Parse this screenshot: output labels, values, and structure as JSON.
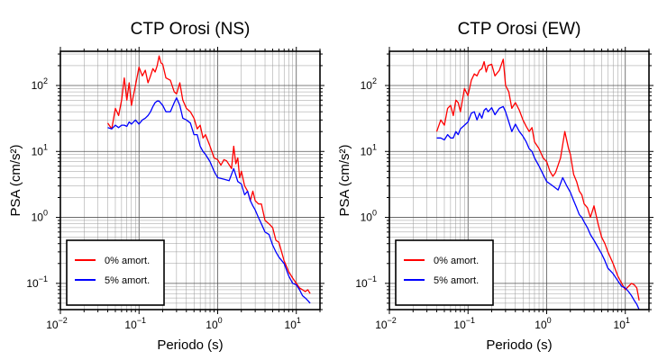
{
  "chart_data": [
    {
      "type": "line",
      "title": "CTP Orosi (NS)",
      "xlabel": "Periodo (s)",
      "ylabel": "PSA (cm/s²)",
      "xscale": "log",
      "yscale": "log",
      "xlim": [
        0.01,
        20
      ],
      "ylim": [
        0.04,
        330
      ],
      "grid": true,
      "legend": "bottom-left",
      "xticks": [
        {
          "base": "10",
          "exp": "−2",
          "value": 0.01
        },
        {
          "base": "10",
          "exp": "−1",
          "value": 0.1
        },
        {
          "base": "10",
          "exp": "0",
          "value": 1
        },
        {
          "base": "10",
          "exp": "1",
          "value": 10
        }
      ],
      "yticks": [
        {
          "base": "10",
          "exp": "−1",
          "value": 0.1
        },
        {
          "base": "10",
          "exp": "0",
          "value": 1
        },
        {
          "base": "10",
          "exp": "1",
          "value": 10
        },
        {
          "base": "10",
          "exp": "2",
          "value": 100
        }
      ],
      "series": [
        {
          "name": "0% amort.",
          "color": "#ff0000",
          "x": [
            0.04,
            0.045,
            0.05,
            0.055,
            0.06,
            0.065,
            0.07,
            0.075,
            0.08,
            0.09,
            0.1,
            0.11,
            0.12,
            0.13,
            0.14,
            0.15,
            0.16,
            0.17,
            0.18,
            0.19,
            0.2,
            0.22,
            0.25,
            0.28,
            0.3,
            0.33,
            0.36,
            0.4,
            0.45,
            0.5,
            0.55,
            0.6,
            0.65,
            0.7,
            0.8,
            0.9,
            1.0,
            1.1,
            1.2,
            1.3,
            1.5,
            1.6,
            1.7,
            1.8,
            1.9,
            2.0,
            2.2,
            2.4,
            2.6,
            2.8,
            3.0,
            3.3,
            3.6,
            4.0,
            4.5,
            5.0,
            5.5,
            6.0,
            7.0,
            8.0,
            9.0,
            10.0,
            11.0,
            12.0,
            13.0,
            14.0,
            15.0
          ],
          "y": [
            27,
            22,
            45,
            35,
            60,
            130,
            60,
            110,
            50,
            100,
            190,
            140,
            170,
            110,
            140,
            180,
            160,
            200,
            280,
            220,
            210,
            130,
            120,
            80,
            75,
            110,
            60,
            45,
            40,
            32,
            22,
            25,
            16,
            18,
            12,
            8,
            7.5,
            6.2,
            7.5,
            7.2,
            5.5,
            12,
            6.5,
            8,
            4,
            5,
            3,
            2.5,
            1.8,
            2.5,
            1.8,
            1.6,
            1.6,
            0.9,
            0.8,
            0.7,
            0.45,
            0.42,
            0.22,
            0.15,
            0.12,
            0.1,
            0.085,
            0.08,
            0.075,
            0.08,
            0.07
          ]
        },
        {
          "name": "5% amort.",
          "color": "#0000ff",
          "x": [
            0.04,
            0.045,
            0.05,
            0.055,
            0.06,
            0.065,
            0.07,
            0.075,
            0.08,
            0.09,
            0.1,
            0.11,
            0.12,
            0.13,
            0.14,
            0.15,
            0.16,
            0.17,
            0.18,
            0.2,
            0.22,
            0.25,
            0.28,
            0.3,
            0.33,
            0.36,
            0.4,
            0.45,
            0.5,
            0.55,
            0.6,
            0.65,
            0.7,
            0.8,
            0.9,
            1.0,
            1.2,
            1.4,
            1.6,
            1.8,
            2.0,
            2.2,
            2.4,
            2.6,
            2.8,
            3.0,
            3.3,
            3.6,
            4.0,
            4.5,
            5.0,
            5.5,
            6.0,
            7.0,
            8.0,
            9.0,
            10.0,
            11.0,
            12.0,
            13.0,
            14.0,
            15.0
          ],
          "y": [
            23,
            22,
            25,
            23,
            25,
            25,
            24,
            28,
            26,
            30,
            26,
            30,
            32,
            35,
            40,
            48,
            55,
            58,
            58,
            50,
            40,
            40,
            55,
            65,
            50,
            32,
            30,
            27,
            18,
            18,
            12,
            10,
            9,
            7,
            5,
            4,
            3.8,
            3.6,
            5.5,
            3.5,
            3.2,
            2.2,
            2.5,
            1.8,
            1.5,
            1.3,
            1.0,
            0.8,
            0.6,
            0.55,
            0.38,
            0.3,
            0.25,
            0.2,
            0.13,
            0.1,
            0.095,
            0.08,
            0.065,
            0.06,
            0.055,
            0.05
          ]
        }
      ]
    },
    {
      "type": "line",
      "title": "CTP Orosi (EW)",
      "xlabel": "Periodo (s)",
      "ylabel": "PSA (cm/s²)",
      "xscale": "log",
      "yscale": "log",
      "xlim": [
        0.01,
        20
      ],
      "ylim": [
        0.04,
        330
      ],
      "grid": true,
      "legend": "bottom-left",
      "xticks": [
        {
          "base": "10",
          "exp": "−2",
          "value": 0.01
        },
        {
          "base": "10",
          "exp": "−1",
          "value": 0.1
        },
        {
          "base": "10",
          "exp": "0",
          "value": 1
        },
        {
          "base": "10",
          "exp": "1",
          "value": 10
        }
      ],
      "yticks": [
        {
          "base": "10",
          "exp": "−1",
          "value": 0.1
        },
        {
          "base": "10",
          "exp": "0",
          "value": 1
        },
        {
          "base": "10",
          "exp": "1",
          "value": 10
        },
        {
          "base": "10",
          "exp": "2",
          "value": 100
        }
      ],
      "series": [
        {
          "name": "0% amort.",
          "color": "#ff0000",
          "x": [
            0.04,
            0.045,
            0.05,
            0.055,
            0.06,
            0.065,
            0.07,
            0.075,
            0.08,
            0.09,
            0.1,
            0.11,
            0.12,
            0.13,
            0.14,
            0.15,
            0.16,
            0.17,
            0.18,
            0.2,
            0.22,
            0.25,
            0.28,
            0.3,
            0.33,
            0.36,
            0.4,
            0.45,
            0.5,
            0.55,
            0.6,
            0.65,
            0.7,
            0.8,
            0.9,
            1.0,
            1.1,
            1.2,
            1.3,
            1.5,
            1.7,
            1.9,
            2.0,
            2.2,
            2.4,
            2.6,
            2.8,
            3.0,
            3.3,
            3.6,
            4.0,
            4.5,
            5.0,
            5.5,
            6.0,
            7.0,
            8.0,
            9.0,
            10.0,
            11.0,
            12.0,
            13.0,
            14.0,
            15.0
          ],
          "y": [
            20,
            30,
            25,
            45,
            50,
            35,
            60,
            55,
            40,
            90,
            70,
            120,
            150,
            140,
            170,
            180,
            230,
            160,
            200,
            210,
            140,
            170,
            250,
            100,
            80,
            45,
            55,
            42,
            30,
            24,
            20,
            23,
            14,
            11,
            8,
            7,
            5,
            4.2,
            4.8,
            8,
            20,
            11,
            9,
            4.5,
            3.5,
            2.5,
            2.2,
            1.6,
            1.4,
            1.0,
            1.5,
            0.8,
            0.5,
            0.4,
            0.3,
            0.2,
            0.13,
            0.1,
            0.08,
            0.09,
            0.1,
            0.095,
            0.085,
            0.055
          ]
        },
        {
          "name": "5% amort.",
          "color": "#0000ff",
          "x": [
            0.04,
            0.045,
            0.05,
            0.055,
            0.06,
            0.065,
            0.07,
            0.075,
            0.08,
            0.09,
            0.1,
            0.11,
            0.12,
            0.13,
            0.14,
            0.15,
            0.16,
            0.17,
            0.18,
            0.2,
            0.22,
            0.25,
            0.28,
            0.3,
            0.33,
            0.36,
            0.4,
            0.45,
            0.5,
            0.55,
            0.6,
            0.65,
            0.7,
            0.8,
            0.9,
            1.0,
            1.2,
            1.4,
            1.6,
            1.8,
            2.0,
            2.2,
            2.4,
            2.6,
            2.8,
            3.0,
            3.3,
            3.6,
            4.0,
            4.5,
            5.0,
            5.5,
            6.0,
            7.0,
            8.0,
            9.0,
            10.0,
            11.0,
            12.0,
            13.0,
            14.0,
            15.0
          ],
          "y": [
            16,
            16,
            15,
            18,
            16,
            16,
            20,
            18,
            22,
            25,
            28,
            38,
            40,
            30,
            38,
            32,
            42,
            45,
            40,
            46,
            36,
            45,
            48,
            40,
            28,
            20,
            26,
            20,
            17,
            14,
            11,
            10,
            8,
            6,
            4.5,
            3.5,
            3.0,
            2.6,
            4.0,
            3.0,
            2.4,
            1.8,
            1.4,
            1.1,
            1.0,
            0.85,
            0.7,
            0.55,
            0.45,
            0.35,
            0.28,
            0.22,
            0.17,
            0.14,
            0.11,
            0.09,
            0.085,
            0.075,
            0.065,
            0.055,
            0.048,
            0.04
          ]
        }
      ]
    }
  ]
}
